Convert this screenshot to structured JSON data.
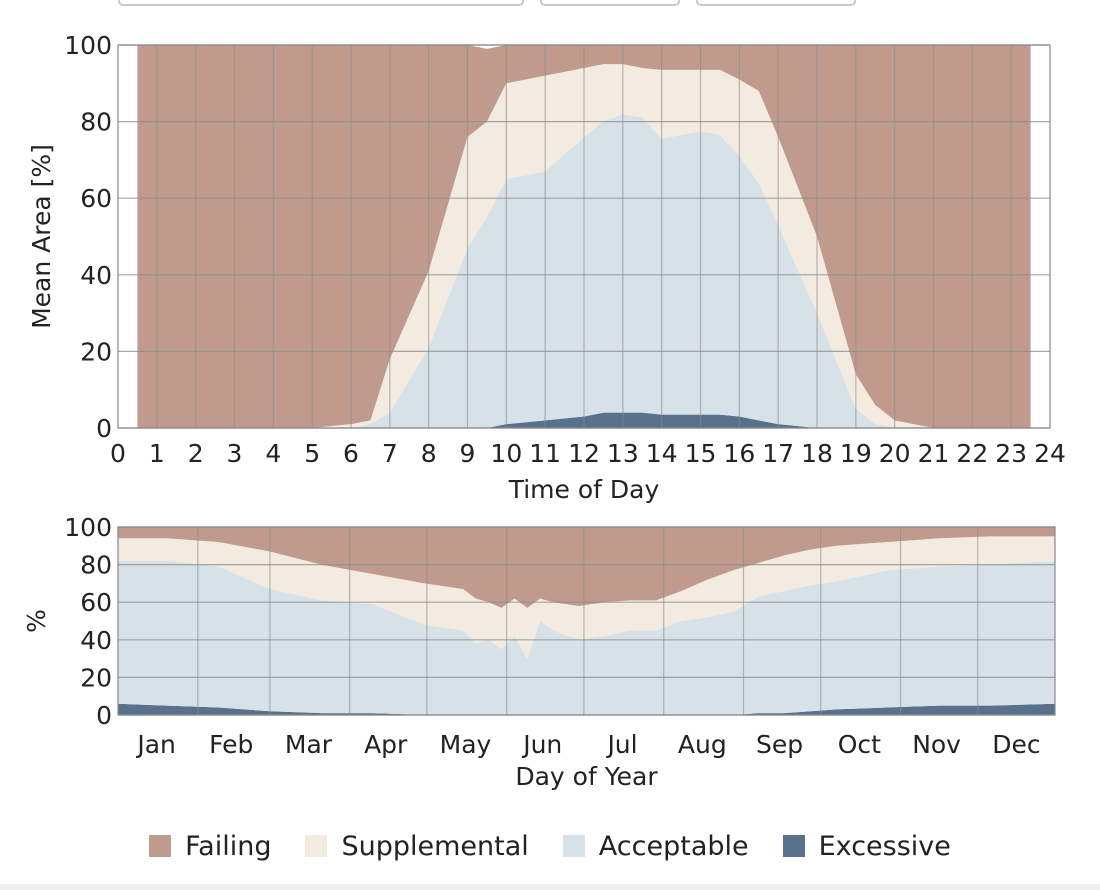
{
  "toolbar": {
    "controls": [
      {
        "value": ""
      },
      {
        "value": ""
      },
      {
        "value": ""
      }
    ]
  },
  "colors": {
    "failing": "#c19a8e",
    "supplemental": "#f3ebe0",
    "acceptable": "#d6e1e8",
    "excessive": "#58728d",
    "grid": "#8c8c8c"
  },
  "legend": [
    "Failing",
    "Supplemental",
    "Acceptable",
    "Excessive"
  ],
  "chart_data": [
    {
      "type": "area",
      "stacked": true,
      "xlabel": "Time of Day",
      "ylabel": "Mean Area [%]",
      "xlim": [
        0,
        24
      ],
      "ylim": [
        0,
        100
      ],
      "xticks": [
        0,
        1,
        2,
        3,
        4,
        5,
        6,
        7,
        8,
        9,
        10,
        11,
        12,
        13,
        14,
        15,
        16,
        17,
        18,
        19,
        20,
        21,
        22,
        23,
        24
      ],
      "yticks": [
        0,
        20,
        40,
        60,
        80,
        100
      ],
      "x": [
        0.5,
        5,
        6,
        6.5,
        7,
        8,
        9,
        9.5,
        10,
        11,
        12,
        12.5,
        13,
        13.5,
        14,
        14.5,
        15,
        15.5,
        16,
        16.5,
        17,
        18,
        19,
        19.5,
        20,
        21,
        23.5
      ],
      "series": [
        {
          "name": "Excessive",
          "values": [
            0,
            0,
            0,
            0,
            0,
            0,
            0,
            0,
            1,
            2,
            3,
            4,
            4,
            4,
            3.5,
            3.5,
            3.5,
            3.5,
            3,
            2,
            1,
            0,
            0,
            0,
            0,
            0,
            0
          ]
        },
        {
          "name": "Acceptable",
          "values": [
            0,
            0,
            0,
            1,
            4,
            21,
            47,
            55,
            64,
            65,
            73,
            76,
            78,
            77,
            72,
            73,
            74,
            73,
            68,
            62,
            52,
            30,
            5,
            1,
            0,
            0,
            0
          ]
        },
        {
          "name": "Supplemental",
          "values": [
            0,
            0,
            1,
            1,
            14,
            20,
            29,
            25,
            25,
            25,
            18,
            15,
            13,
            13,
            18,
            17,
            16,
            17,
            20,
            24,
            23,
            20,
            9,
            5,
            2,
            0,
            0
          ]
        },
        {
          "name": "Failing",
          "values": [
            100,
            100,
            99,
            98,
            82,
            59,
            24,
            19,
            10,
            8,
            6,
            5,
            5,
            6,
            6.5,
            6.5,
            6.5,
            6.5,
            9,
            12,
            24,
            50,
            86,
            94,
            98,
            100,
            100
          ]
        }
      ]
    },
    {
      "type": "area",
      "stacked": true,
      "xlabel": "Day of Year",
      "ylabel": "%",
      "xlim": [
        1,
        365
      ],
      "ylim": [
        0,
        100
      ],
      "yticks": [
        0,
        20,
        40,
        60,
        80,
        100
      ],
      "xtick_labels": [
        "Jan",
        "Feb",
        "Mar",
        "Apr",
        "May",
        "Jun",
        "Jul",
        "Aug",
        "Sep",
        "Oct",
        "Nov",
        "Dec"
      ],
      "x": [
        1,
        20,
        40,
        60,
        80,
        100,
        120,
        135,
        140,
        145,
        150,
        155,
        160,
        165,
        170,
        180,
        190,
        200,
        210,
        220,
        230,
        240,
        250,
        260,
        270,
        280,
        300,
        320,
        340,
        365
      ],
      "series": [
        {
          "name": "Excessive",
          "values": [
            6,
            5,
            4,
            2,
            1,
            1,
            0,
            0,
            0,
            0,
            0,
            0,
            0,
            0,
            0,
            0,
            0,
            0,
            0,
            0,
            0,
            0,
            1,
            1,
            2,
            3,
            4,
            5,
            5,
            6
          ]
        },
        {
          "name": "Acceptable",
          "values": [
            76,
            77,
            75,
            65,
            60,
            58,
            48,
            45,
            38,
            40,
            35,
            42,
            30,
            50,
            45,
            40,
            42,
            45,
            45,
            50,
            52,
            55,
            62,
            65,
            67,
            68,
            73,
            74,
            75,
            76
          ]
        },
        {
          "name": "Supplemental",
          "values": [
            12,
            12,
            13,
            20,
            19,
            16,
            22,
            22,
            24,
            20,
            22,
            20,
            27,
            12,
            15,
            18,
            18,
            16,
            16,
            16,
            20,
            22,
            18,
            19,
            19,
            19,
            15,
            15,
            15,
            13
          ]
        },
        {
          "name": "Failing",
          "values": [
            6,
            6,
            8,
            13,
            20,
            25,
            30,
            33,
            38,
            40,
            43,
            38,
            43,
            38,
            40,
            42,
            40,
            39,
            39,
            34,
            28,
            23,
            19,
            15,
            12,
            10,
            8,
            6,
            5,
            5
          ]
        }
      ]
    }
  ]
}
